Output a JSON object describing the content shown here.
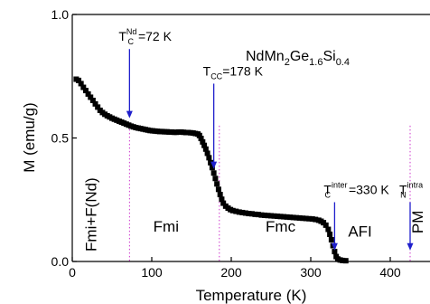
{
  "chart_data": {
    "type": "scatter",
    "title": "",
    "sample_label": {
      "prefix": "NdMn",
      "sub1": "2",
      "mid1": "Ge",
      "sub2": "1.6",
      "mid2": "Si",
      "sub3": "0.4"
    },
    "xlabel": "Temperature (K)",
    "ylabel": "M (emu/g)",
    "xlim": [
      0,
      450
    ],
    "ylim": [
      0.0,
      1.0
    ],
    "xticks": [
      {
        "value": 0,
        "label": "0"
      },
      {
        "value": 100,
        "label": "100"
      },
      {
        "value": 200,
        "label": "200"
      },
      {
        "value": 300,
        "label": "300"
      },
      {
        "value": 400,
        "label": "400"
      }
    ],
    "yticks": [
      {
        "value": 0.0,
        "label": "0.0"
      },
      {
        "value": 0.5,
        "label": "0.5"
      },
      {
        "value": 1.0,
        "label": "1.0"
      }
    ],
    "marker_color": "#000000",
    "arrow_color": "#1f1fcc",
    "guide_color": "#cc33cc",
    "points": [
      [
        5,
        0.738
      ],
      [
        8,
        0.733
      ],
      [
        11,
        0.72
      ],
      [
        14,
        0.705
      ],
      [
        17,
        0.692
      ],
      [
        20,
        0.678
      ],
      [
        23,
        0.665
      ],
      [
        26,
        0.652
      ],
      [
        29,
        0.638
      ],
      [
        32,
        0.625
      ],
      [
        35,
        0.612
      ],
      [
        38,
        0.603
      ],
      [
        41,
        0.596
      ],
      [
        44,
        0.59
      ],
      [
        47,
        0.585
      ],
      [
        50,
        0.58
      ],
      [
        53,
        0.576
      ],
      [
        56,
        0.572
      ],
      [
        59,
        0.568
      ],
      [
        62,
        0.564
      ],
      [
        65,
        0.56
      ],
      [
        68,
        0.556
      ],
      [
        71,
        0.552
      ],
      [
        74,
        0.548
      ],
      [
        77,
        0.545
      ],
      [
        80,
        0.542
      ],
      [
        83,
        0.54
      ],
      [
        86,
        0.538
      ],
      [
        89,
        0.536
      ],
      [
        92,
        0.534
      ],
      [
        95,
        0.532
      ],
      [
        98,
        0.53
      ],
      [
        101,
        0.529
      ],
      [
        104,
        0.528
      ],
      [
        107,
        0.527
      ],
      [
        110,
        0.526
      ],
      [
        113,
        0.526
      ],
      [
        116,
        0.525
      ],
      [
        119,
        0.525
      ],
      [
        122,
        0.524
      ],
      [
        125,
        0.524
      ],
      [
        128,
        0.523
      ],
      [
        131,
        0.523
      ],
      [
        134,
        0.524
      ],
      [
        137,
        0.524
      ],
      [
        140,
        0.523
      ],
      [
        143,
        0.522
      ],
      [
        146,
        0.522
      ],
      [
        149,
        0.521
      ],
      [
        152,
        0.52
      ],
      [
        155,
        0.518
      ],
      [
        158,
        0.516
      ],
      [
        160,
        0.51
      ],
      [
        162,
        0.498
      ],
      [
        164,
        0.484
      ],
      [
        166,
        0.47
      ],
      [
        168,
        0.455
      ],
      [
        170,
        0.438
      ],
      [
        172,
        0.42
      ],
      [
        174,
        0.4
      ],
      [
        176,
        0.38
      ],
      [
        178,
        0.358
      ],
      [
        180,
        0.336
      ],
      [
        182,
        0.314
      ],
      [
        184,
        0.292
      ],
      [
        186,
        0.271
      ],
      [
        188,
        0.252
      ],
      [
        190,
        0.236
      ],
      [
        193,
        0.224
      ],
      [
        196,
        0.216
      ],
      [
        199,
        0.21
      ],
      [
        202,
        0.206
      ],
      [
        206,
        0.203
      ],
      [
        210,
        0.2
      ],
      [
        214,
        0.198
      ],
      [
        218,
        0.196
      ],
      [
        222,
        0.194
      ],
      [
        226,
        0.193
      ],
      [
        230,
        0.191
      ],
      [
        234,
        0.19
      ],
      [
        238,
        0.188
      ],
      [
        242,
        0.187
      ],
      [
        246,
        0.186
      ],
      [
        250,
        0.185
      ],
      [
        254,
        0.184
      ],
      [
        258,
        0.183
      ],
      [
        262,
        0.182
      ],
      [
        266,
        0.181
      ],
      [
        270,
        0.18
      ],
      [
        274,
        0.179
      ],
      [
        278,
        0.178
      ],
      [
        282,
        0.177
      ],
      [
        286,
        0.176
      ],
      [
        290,
        0.175
      ],
      [
        294,
        0.174
      ],
      [
        298,
        0.173
      ],
      [
        302,
        0.172
      ],
      [
        306,
        0.17
      ],
      [
        310,
        0.167
      ],
      [
        313,
        0.163
      ],
      [
        316,
        0.157
      ],
      [
        319,
        0.147
      ],
      [
        322,
        0.13
      ],
      [
        324,
        0.11
      ],
      [
        326,
        0.088
      ],
      [
        328,
        0.064
      ],
      [
        330,
        0.04
      ],
      [
        332,
        0.02
      ],
      [
        334,
        0.01
      ],
      [
        337,
        0.006
      ],
      [
        340,
        0.004
      ],
      [
        344,
        0.003
      ]
    ],
    "arrows": [
      {
        "id": "tc-nd",
        "x": 72,
        "y_tail": 0.86,
        "y_head": 0.58,
        "main": "T",
        "sub": "C",
        "sup": "Nd",
        "value": "=72 K"
      },
      {
        "id": "tcc",
        "x": 178,
        "y_tail": 0.72,
        "y_head": 0.375,
        "main": "T",
        "sub": "CC",
        "sup": "",
        "value": "=178 K"
      },
      {
        "id": "tc-inter",
        "x": 330,
        "y_tail": 0.24,
        "y_head": 0.045,
        "main": "T",
        "sub": "C",
        "sup": "inter",
        "value": "=330 K"
      },
      {
        "id": "tn-intra",
        "x": 425,
        "y_tail": 0.24,
        "y_head": 0.045,
        "main": "T",
        "sub": "N",
        "sup": "intra",
        "value": ""
      }
    ],
    "guides": [
      72,
      185,
      425
    ],
    "regions": [
      {
        "id": "fmi-f-nd",
        "label": "Fmi+F(Nd)",
        "x": 30,
        "y": 0.19,
        "rotate": true
      },
      {
        "id": "fmi",
        "label": "Fmi",
        "x": 118,
        "y": 0.12,
        "rotate": false
      },
      {
        "id": "fmc",
        "label": "Fmc",
        "x": 262,
        "y": 0.12,
        "rotate": false
      },
      {
        "id": "afi",
        "label": "AFI",
        "x": 362,
        "y": 0.1,
        "rotate": false
      },
      {
        "id": "pm",
        "label": "PM",
        "x": 441,
        "y": 0.16,
        "rotate": true
      }
    ]
  }
}
